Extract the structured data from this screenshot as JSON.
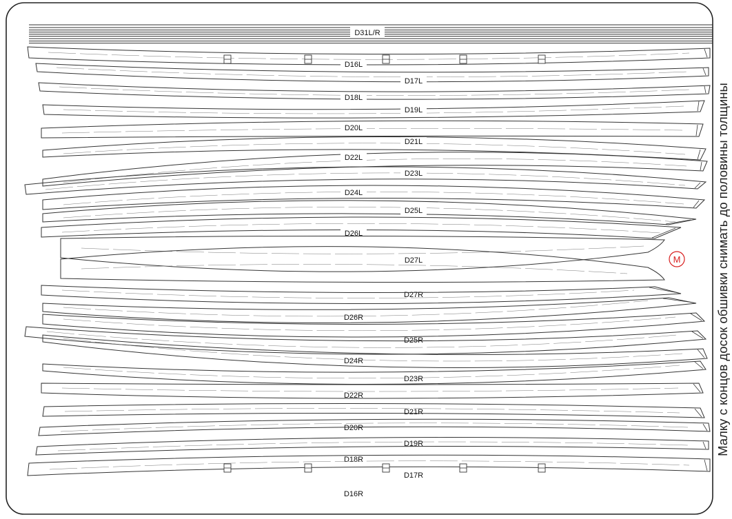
{
  "sheet": {
    "title_strip_label": "D31L/R",
    "side_note": "Малку с концов досок обшивки снимать до половины толщины",
    "marker_label": "M",
    "colors": {
      "line": "#333333",
      "frame": "#222222",
      "marker": "#d81e1e",
      "background": "#ffffff"
    }
  },
  "parts": [
    {
      "id": "D16L",
      "label": "D16L",
      "tabs": 5
    },
    {
      "id": "D17L",
      "label": "D17L"
    },
    {
      "id": "D18L",
      "label": "D18L"
    },
    {
      "id": "D19L",
      "label": "D19L"
    },
    {
      "id": "D20L",
      "label": "D20L"
    },
    {
      "id": "D21L",
      "label": "D21L"
    },
    {
      "id": "D22L",
      "label": "D22L"
    },
    {
      "id": "D23L",
      "label": "D23L"
    },
    {
      "id": "D24L",
      "label": "D24L"
    },
    {
      "id": "D25L",
      "label": "D25L"
    },
    {
      "id": "D26L",
      "label": "D26L"
    },
    {
      "id": "D27L",
      "label": "D27L"
    },
    {
      "id": "D27R",
      "label": "D27R"
    },
    {
      "id": "D26R",
      "label": "D26R"
    },
    {
      "id": "D25R",
      "label": "D25R"
    },
    {
      "id": "D24R",
      "label": "D24R"
    },
    {
      "id": "D23R",
      "label": "D23R"
    },
    {
      "id": "D22R",
      "label": "D22R"
    },
    {
      "id": "D21R",
      "label": "D21R"
    },
    {
      "id": "D20R",
      "label": "D20R"
    },
    {
      "id": "D19R",
      "label": "D19R"
    },
    {
      "id": "D18R",
      "label": "D18R"
    },
    {
      "id": "D17R",
      "label": "D17R"
    },
    {
      "id": "D16R",
      "label": "D16R",
      "tabs": 5
    }
  ]
}
